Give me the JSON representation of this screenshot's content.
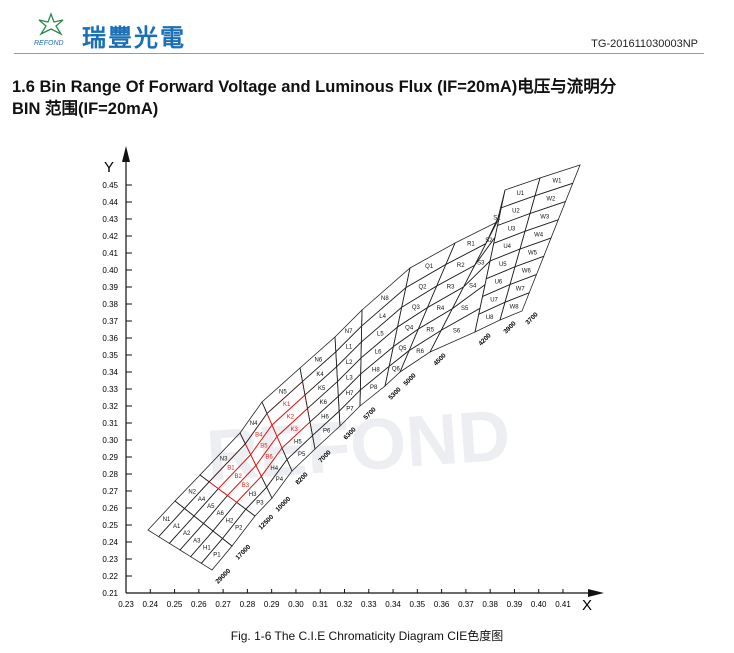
{
  "header": {
    "brand_cn": "瑞豐光電",
    "brand_en": "REFOND",
    "code": "TG-201611030003NP"
  },
  "title_lines": [
    "1.6 Bin Range Of Forward Voltage and Luminous Flux (IF=20mA)电压与流明分",
    "BIN 范围(IF=20mA)"
  ],
  "chart_data": {
    "type": "cie",
    "x_label": "X",
    "y_label": "Y",
    "xlim": [
      0.23,
      0.41
    ],
    "ylim": [
      0.21,
      0.45
    ],
    "xticks": [
      0.23,
      0.24,
      0.25,
      0.26,
      0.27,
      0.28,
      0.29,
      {
        "value": 0.3,
        "label": "0.30"
      },
      0.31,
      0.32,
      0.33,
      0.34,
      0.35,
      0.36,
      0.37,
      0.38,
      0.39,
      {
        "value": 0.4,
        "label": "0.40"
      },
      0.41
    ],
    "yticks": [
      0.21,
      0.22,
      0.23,
      0.24,
      0.25,
      0.26,
      0.27,
      0.28,
      0.29,
      {
        "value": 0.3,
        "label": "0.30"
      },
      0.31,
      0.32,
      0.33,
      0.34,
      0.35,
      0.36,
      0.37,
      0.38,
      0.39,
      {
        "value": 0.4,
        "label": "0.40"
      },
      0.41,
      0.42,
      0.43,
      0.44,
      0.45
    ],
    "cct": [
      29000,
      17000,
      12500,
      10000,
      8200,
      7000,
      6300,
      5700,
      5300,
      5000,
      4500,
      4200,
      3900,
      3700
    ],
    "columns": [
      [
        "P1",
        "H1",
        "A3",
        "A2",
        "A1",
        "N1"
      ],
      [
        "P2",
        "H2",
        "A6",
        "A5",
        "A4",
        "N2"
      ],
      [
        "P3",
        "H3",
        "B3",
        "B2",
        "B1",
        "N3"
      ],
      [
        "P4",
        "H4",
        "B6",
        "B5",
        "B4",
        "N4"
      ],
      [
        "P5",
        "H5",
        "K3",
        "K2",
        "K1",
        "N5"
      ],
      [
        "P6",
        "H6",
        "K6",
        "K5",
        "K4",
        "N6"
      ],
      [
        "P7",
        "H7",
        "L3",
        "L2",
        "L1",
        "N7"
      ],
      [
        "P8",
        "H8",
        "L6",
        "L5",
        "L4",
        "N8"
      ],
      [
        "Q6",
        "Q5",
        "Q4",
        "Q3",
        "Q2",
        "Q1"
      ],
      [
        "R6",
        "R5",
        "R4",
        "R3",
        "R2",
        "R1"
      ],
      [
        "S6",
        "S5",
        "S4",
        "S3",
        "S2",
        "S1"
      ],
      [
        "U8",
        "U7",
        "U6",
        "U5",
        "U4",
        "U3",
        "U2",
        "U1"
      ],
      [
        "W8",
        "W7",
        "W6",
        "W5",
        "W4",
        "W3",
        "W2",
        "W1"
      ]
    ],
    "line_color": "#222222",
    "highlight_color": "#e41a1a",
    "highlighted": [
      "B1",
      "B2",
      "B3",
      "B4",
      "B5",
      "B6",
      "K1",
      "K2",
      "K3"
    ],
    "watermark": "REFOND"
  },
  "caption": "Fig. 1-6 The C.I.E Chromaticity Diagram CIE色度图"
}
